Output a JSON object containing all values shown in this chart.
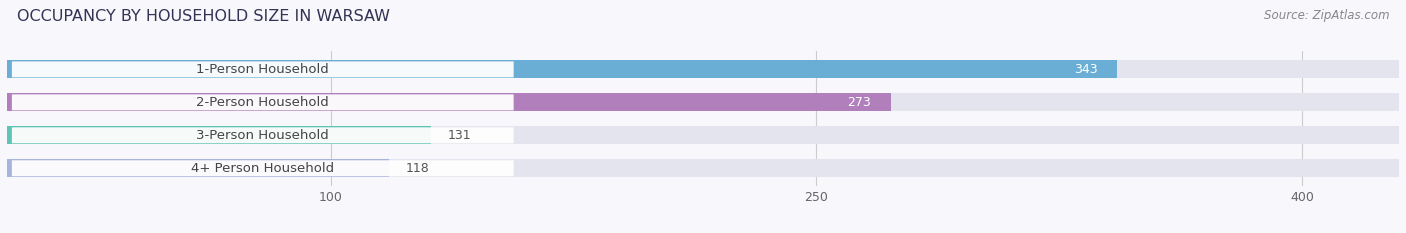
{
  "title": "OCCUPANCY BY HOUSEHOLD SIZE IN WARSAW",
  "source": "Source: ZipAtlas.com",
  "categories": [
    "1-Person Household",
    "2-Person Household",
    "3-Person Household",
    "4+ Person Household"
  ],
  "values": [
    343,
    273,
    131,
    118
  ],
  "bar_colors": [
    "#6aaed6",
    "#b07fbc",
    "#5ec4b4",
    "#a8b4dc"
  ],
  "bar_bg_color": "#e4e4ee",
  "label_bg_color": "#ffffff",
  "xlim": [
    0,
    430
  ],
  "xticks": [
    100,
    250,
    400
  ],
  "title_fontsize": 11.5,
  "label_fontsize": 9.5,
  "value_fontsize": 9,
  "source_fontsize": 8.5,
  "background_color": "#f7f7fc",
  "bar_height": 0.55,
  "bar_label_inside_threshold": 200
}
